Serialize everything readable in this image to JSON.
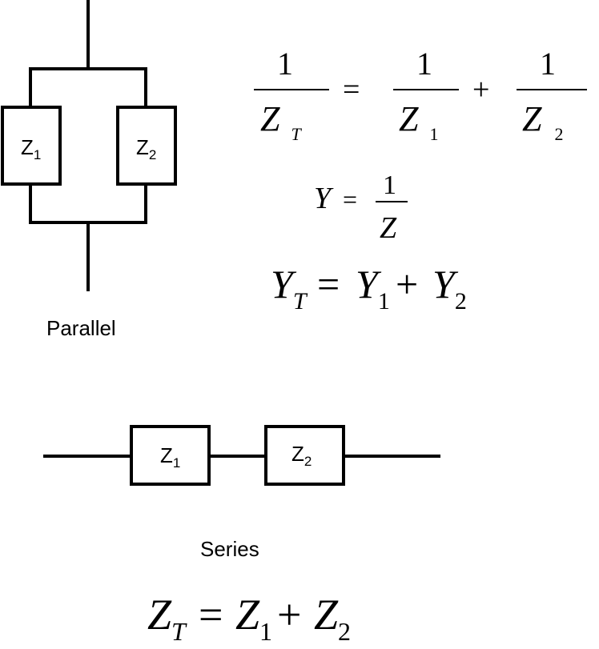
{
  "parallel": {
    "caption": "Parallel",
    "box1": {
      "letter": "Z",
      "sub": "1"
    },
    "box2": {
      "letter": "Z",
      "sub": "2"
    }
  },
  "series": {
    "caption": "Series",
    "box1": {
      "letter": "Z",
      "sub": "1"
    },
    "box2": {
      "letter": "Z",
      "sub": "2"
    }
  },
  "equations": {
    "reciprocal": {
      "one": "1",
      "equals": "=",
      "plus": "+",
      "zt": {
        "letter": "Z",
        "sub": "T"
      },
      "z1": {
        "letter": "Z",
        "sub": "1"
      },
      "z2": {
        "letter": "Z",
        "sub": "2"
      }
    },
    "admittance_def": {
      "y": "Y",
      "equals": "=",
      "one": "1",
      "z": "Z"
    },
    "admittance_sum": {
      "yt": {
        "letter": "Y",
        "sub": "T"
      },
      "equals": "=",
      "y1": {
        "letter": "Y",
        "sub": "1"
      },
      "plus": "+",
      "y2": {
        "letter": "Y",
        "sub": "2"
      }
    },
    "series_sum": {
      "zt": {
        "letter": "Z",
        "sub": "T"
      },
      "equals": "=",
      "z1": {
        "letter": "Z",
        "sub": "1"
      },
      "plus": "+",
      "z2": {
        "letter": "Z",
        "sub": "2"
      }
    }
  }
}
